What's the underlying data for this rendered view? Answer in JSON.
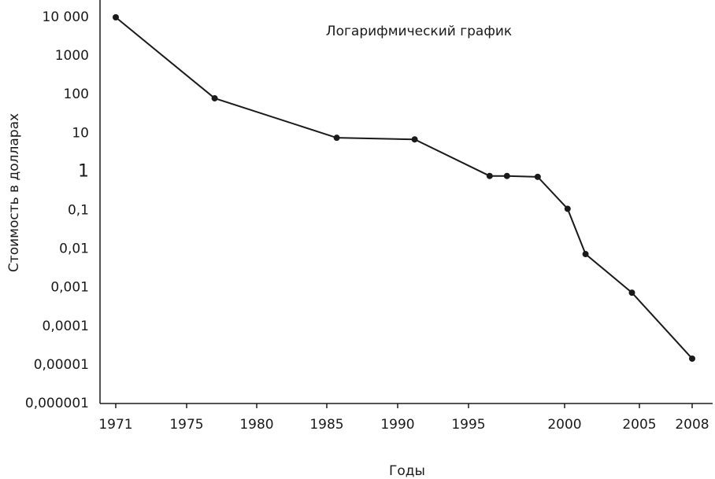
{
  "chart_data": {
    "type": "line",
    "subtitle": "Логарифмический график",
    "xlabel": "Годы",
    "ylabel": "Стоимость в долларах",
    "log_y": true,
    "color": "#1a1a1a",
    "x": [
      1971,
      1977,
      1985.7,
      1991.2,
      1996.1,
      1997,
      1998.6,
      2000.2,
      2001.4,
      2004.5,
      2008
    ],
    "values": [
      10000,
      80,
      7.6,
      6.9,
      0.78,
      0.78,
      0.74,
      0.11,
      0.0074,
      0.00074,
      1.45e-05
    ],
    "xticks": [
      1971,
      1975,
      1980,
      1985,
      1990,
      1995,
      2000,
      2005,
      2008
    ],
    "ylim": [
      1e-06,
      10000
    ],
    "yticks": [
      {
        "value": 1e-06,
        "label": "0,000001"
      },
      {
        "value": 1e-05,
        "label": "0,00001"
      },
      {
        "value": 0.0001,
        "label": "0,0001"
      },
      {
        "value": 0.001,
        "label": "0,001"
      },
      {
        "value": 0.01,
        "label": "0,01"
      },
      {
        "value": 0.1,
        "label": "0,1"
      },
      1,
      10,
      100,
      1000,
      {
        "value": 10000,
        "label": "10 000"
      }
    ]
  }
}
